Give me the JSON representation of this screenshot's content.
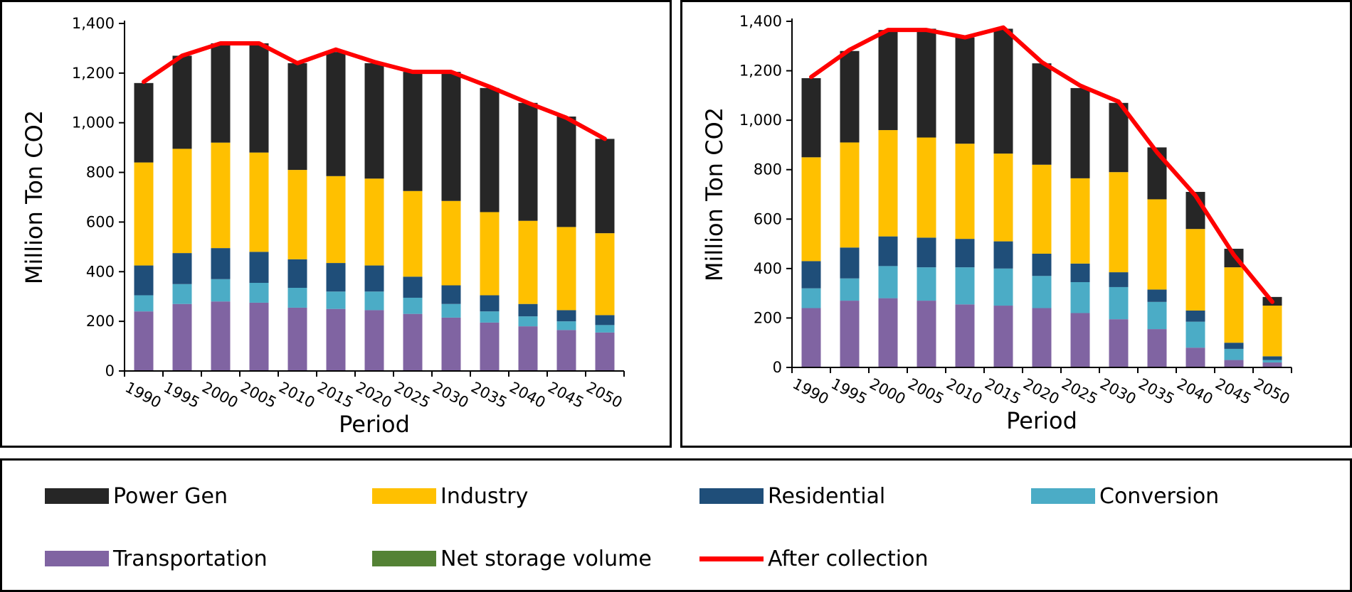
{
  "colors": {
    "power_gen": "#262626",
    "industry": "#FFC000",
    "residential": "#1F4E79",
    "conversion": "#4BACC6",
    "transportation": "#8064A2",
    "net_storage": "#548235",
    "after_collection": "#FF0000"
  },
  "legend": {
    "items": [
      {
        "key": "power_gen",
        "label": "Power Gen",
        "kind": "box"
      },
      {
        "key": "industry",
        "label": "Industry",
        "kind": "box"
      },
      {
        "key": "residential",
        "label": "Residential",
        "kind": "box"
      },
      {
        "key": "conversion",
        "label": "Conversion",
        "kind": "box"
      },
      {
        "key": "transportation",
        "label": "Transportation",
        "kind": "box"
      },
      {
        "key": "net_storage",
        "label": "Net storage volume",
        "kind": "box"
      },
      {
        "key": "after_collection",
        "label": "After collection",
        "kind": "line"
      }
    ]
  },
  "chart_data": [
    {
      "type": "bar",
      "stacked": true,
      "title": "",
      "xlabel": "Period",
      "ylabel": "Million Ton CO2",
      "ylim": [
        0,
        1400
      ],
      "yticks": [
        "0",
        "200",
        "400",
        "600",
        "800",
        "1,000",
        "1,200",
        "1,400"
      ],
      "categories": [
        "1990",
        "1995",
        "2000",
        "2005",
        "2010",
        "2015",
        "2020",
        "2025",
        "2030",
        "2035",
        "2040",
        "2045",
        "2050"
      ],
      "series": [
        {
          "name": "Transportation",
          "key": "transportation",
          "values": [
            240,
            270,
            280,
            275,
            255,
            250,
            245,
            230,
            215,
            195,
            180,
            165,
            155
          ]
        },
        {
          "name": "Conversion",
          "key": "conversion",
          "values": [
            65,
            80,
            90,
            80,
            80,
            70,
            75,
            65,
            55,
            45,
            40,
            35,
            30
          ]
        },
        {
          "name": "Residential",
          "key": "residential",
          "values": [
            120,
            125,
            125,
            125,
            115,
            115,
            105,
            85,
            75,
            65,
            50,
            45,
            40
          ]
        },
        {
          "name": "Industry",
          "key": "industry",
          "values": [
            415,
            420,
            425,
            400,
            360,
            350,
            350,
            345,
            340,
            335,
            335,
            335,
            330
          ]
        },
        {
          "name": "Power Gen",
          "key": "power_gen",
          "values": [
            320,
            375,
            400,
            440,
            430,
            500,
            465,
            480,
            520,
            500,
            475,
            445,
            380
          ]
        },
        {
          "name": "Net storage volume",
          "key": "net_storage",
          "values": [
            0,
            0,
            0,
            0,
            0,
            0,
            0,
            0,
            0,
            0,
            0,
            0,
            0
          ]
        }
      ],
      "line": {
        "name": "After collection",
        "key": "after_collection",
        "values": [
          1165,
          1270,
          1320,
          1320,
          1240,
          1295,
          1245,
          1205,
          1205,
          1145,
          1080,
          1020,
          935
        ]
      }
    },
    {
      "type": "bar",
      "stacked": true,
      "title": "",
      "xlabel": "Period",
      "ylabel": "Million Ton CO2",
      "ylim": [
        0,
        1400
      ],
      "yticks": [
        "0",
        "200",
        "400",
        "600",
        "800",
        "1,000",
        "1,200",
        "1,400"
      ],
      "categories": [
        "1990",
        "1995",
        "2000",
        "2005",
        "2010",
        "2015",
        "2020",
        "2025",
        "2030",
        "2035",
        "2040",
        "2045",
        "2050"
      ],
      "series": [
        {
          "name": "Transportation",
          "key": "transportation",
          "values": [
            240,
            270,
            280,
            270,
            255,
            250,
            240,
            220,
            195,
            155,
            80,
            30,
            20
          ]
        },
        {
          "name": "Conversion",
          "key": "conversion",
          "values": [
            80,
            90,
            130,
            135,
            150,
            150,
            130,
            125,
            130,
            110,
            105,
            45,
            10
          ]
        },
        {
          "name": "Residential",
          "key": "residential",
          "values": [
            110,
            125,
            120,
            120,
            115,
            110,
            90,
            75,
            60,
            50,
            45,
            25,
            15
          ]
        },
        {
          "name": "Industry",
          "key": "industry",
          "values": [
            420,
            425,
            430,
            405,
            385,
            355,
            360,
            345,
            405,
            365,
            330,
            305,
            205
          ]
        },
        {
          "name": "Power Gen",
          "key": "power_gen",
          "values": [
            320,
            370,
            405,
            440,
            430,
            505,
            410,
            365,
            280,
            210,
            150,
            75,
            35
          ]
        },
        {
          "name": "Net storage volume",
          "key": "net_storage",
          "values": [
            0,
            0,
            0,
            0,
            0,
            0,
            0,
            0,
            0,
            0,
            0,
            0,
            0
          ]
        }
      ],
      "line": {
        "name": "After collection",
        "key": "after_collection",
        "values": [
          1175,
          1285,
          1365,
          1365,
          1335,
          1375,
          1235,
          1140,
          1075,
          870,
          695,
          455,
          265
        ]
      }
    }
  ]
}
